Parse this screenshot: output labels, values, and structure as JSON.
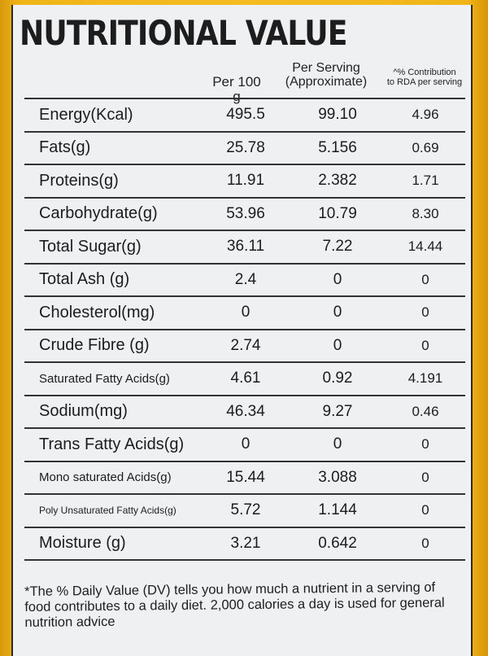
{
  "title": "NUTRITIONAL VALUE",
  "headers": {
    "per_100g": "Per 100 g",
    "per_serving_line1": "Per Serving",
    "per_serving_line2": "(Approximate)",
    "rda_line1": "^% Contribution",
    "rda_line2": "to RDA per serving"
  },
  "rows": [
    {
      "name": "Energy(Kcal)",
      "per_100g": "495.5",
      "per_serving": "99.10",
      "rda": "4.96"
    },
    {
      "name": "Fats(g)",
      "per_100g": "25.78",
      "per_serving": "5.156",
      "rda": "0.69"
    },
    {
      "name": "Proteins(g)",
      "per_100g": "11.91",
      "per_serving": "2.382",
      "rda": "1.71"
    },
    {
      "name": "Carbohydrate(g)",
      "per_100g": "53.96",
      "per_serving": "10.79",
      "rda": "8.30"
    },
    {
      "name": "Total Sugar(g)",
      "per_100g": "36.11",
      "per_serving": "7.22",
      "rda": "14.44"
    },
    {
      "name": "Total Ash (g)",
      "per_100g": "2.4",
      "per_serving": "0",
      "rda": "0"
    },
    {
      "name": "Cholesterol(mg)",
      "per_100g": "0",
      "per_serving": "0",
      "rda": "0"
    },
    {
      "name": "Crude Fibre (g)",
      "per_100g": "2.74",
      "per_serving": "0",
      "rda": "0"
    },
    {
      "name": "Saturated Fatty Acids(g)",
      "per_100g": "4.61",
      "per_serving": "0.92",
      "rda": "4.191"
    },
    {
      "name": "Sodium(mg)",
      "per_100g": "46.34",
      "per_serving": "9.27",
      "rda": "0.46"
    },
    {
      "name": "Trans Fatty Acids(g)",
      "per_100g": "0",
      "per_serving": "0",
      "rda": "0"
    },
    {
      "name": "Mono saturated Acids(g)",
      "per_100g": "15.44",
      "per_serving": "3.088",
      "rda": "0"
    },
    {
      "name": "Poly Unsaturated Fatty Acids(g)",
      "per_100g": "5.72",
      "per_serving": "1.144",
      "rda": "0"
    },
    {
      "name": "Moisture (g)",
      "per_100g": "3.21",
      "per_serving": "0.642",
      "rda": "0"
    }
  ],
  "footnote": "*The % Daily Value (DV) tells you how much a nutrient in a serving of food contributes to a daily diet. 2,000 calories a day is used for general nutrition advice",
  "colors": {
    "packaging": "#f5bd22",
    "label_background": "#eef0f2",
    "ink": "#1c1c1c"
  }
}
